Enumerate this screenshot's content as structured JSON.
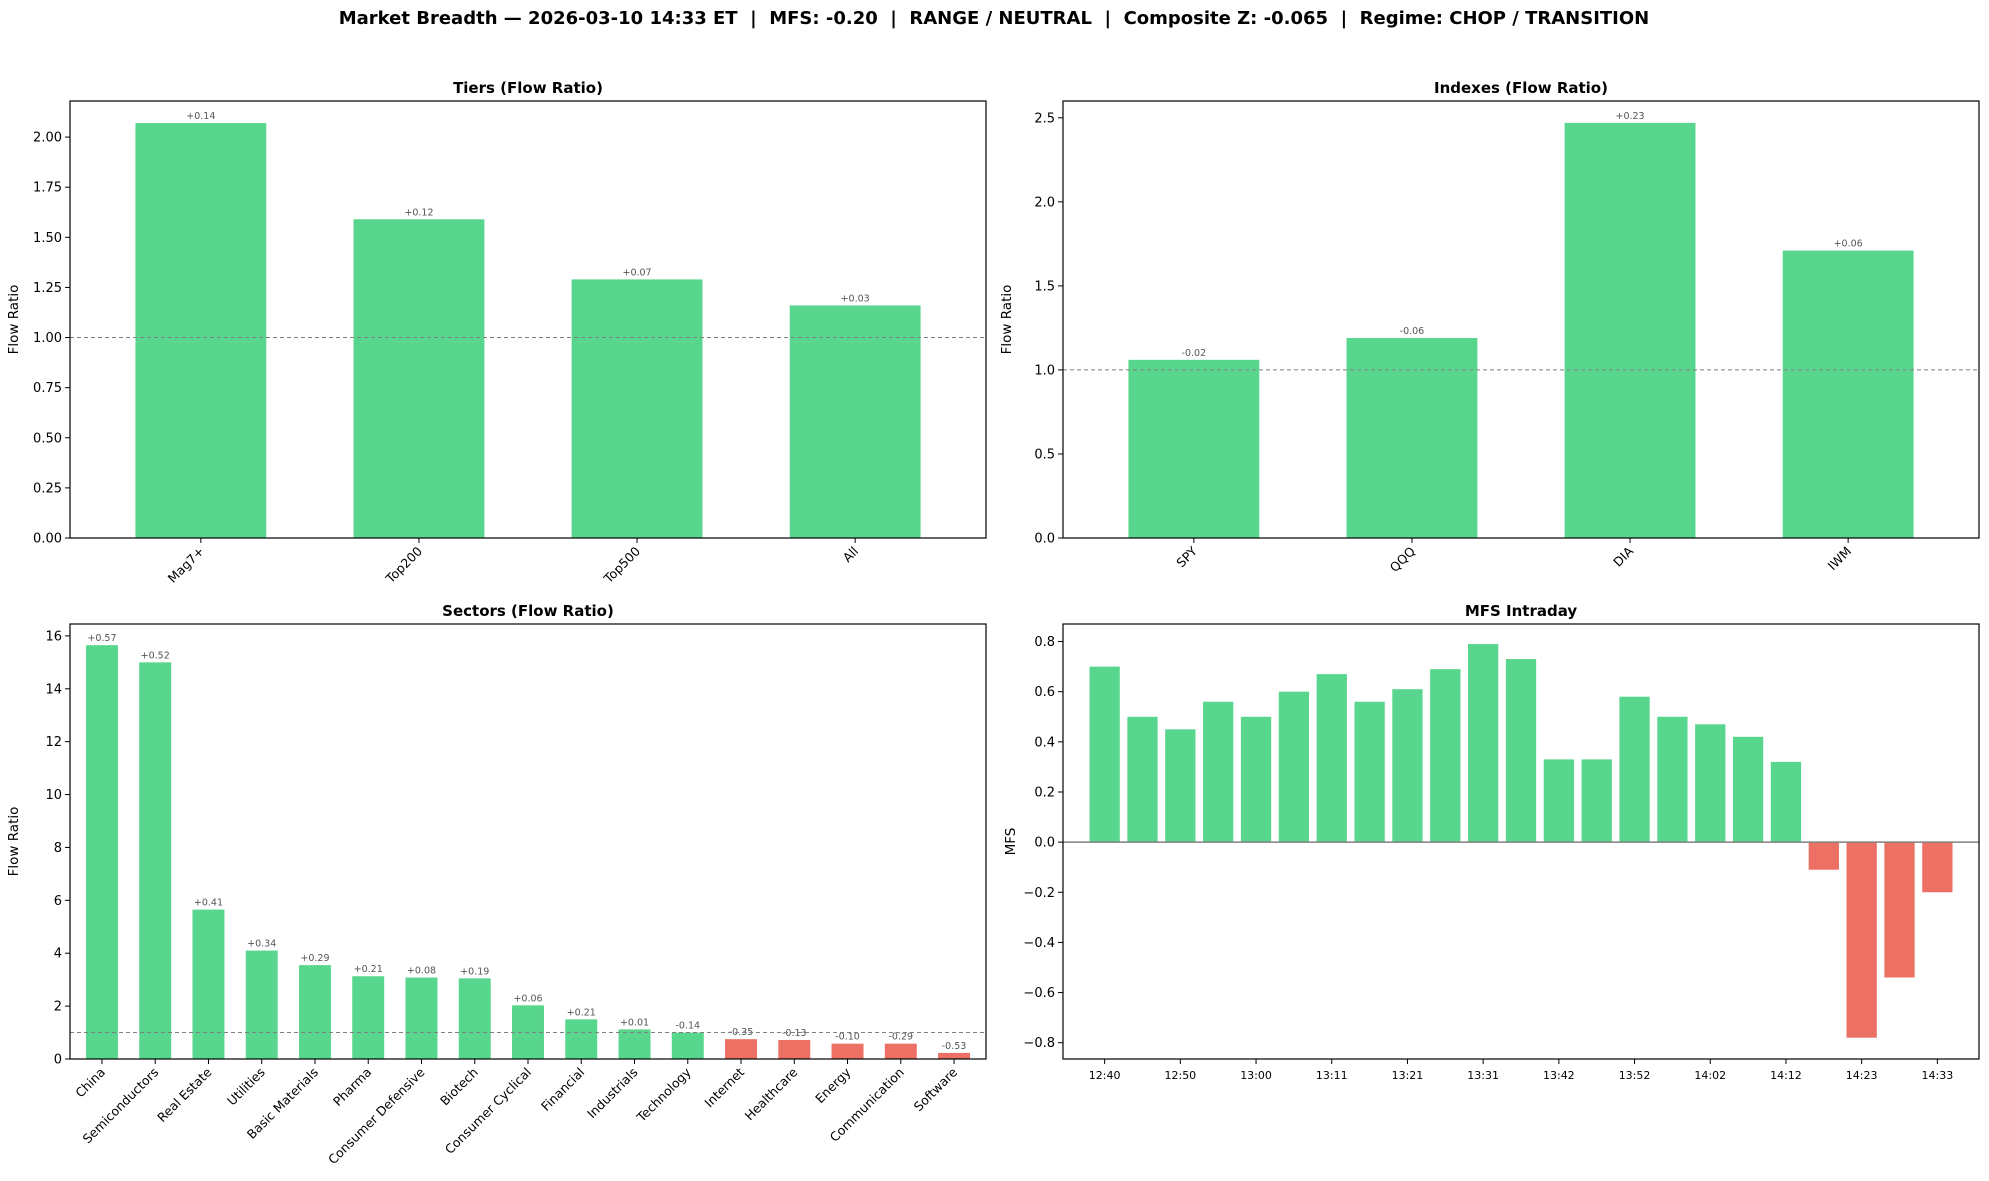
{
  "figure_title": "Market Breadth — 2026-03-10 14:33 ET  |  MFS: -0.20  |  RANGE / NEUTRAL  |  Composite Z: -0.065  |  Regime: CHOP / TRANSITION",
  "colors": {
    "positive": "#58d68d",
    "negative": "#ec7063",
    "reference_line": "#808080"
  },
  "chart_data": [
    {
      "type": "bar",
      "title": "Tiers (Flow Ratio)",
      "ylabel": "Flow Ratio",
      "categories": [
        "Mag7+",
        "Top200",
        "Top500",
        "All"
      ],
      "values": [
        2.07,
        1.59,
        1.29,
        1.16
      ],
      "data_labels": [
        "+0.14",
        "+0.12",
        "+0.07",
        "+0.03"
      ],
      "ylim": [
        0,
        2.18
      ],
      "y_ticks": [
        0,
        0.25,
        0.5,
        0.75,
        1.0,
        1.25,
        1.5,
        1.75,
        2.0
      ],
      "y_tick_labels": [
        "0.00",
        "0.25",
        "0.50",
        "0.75",
        "1.00",
        "1.25",
        "1.50",
        "1.75",
        "2.00"
      ],
      "reference_line": 1.0,
      "x_labels_rotated": true,
      "grid": false
    },
    {
      "type": "bar",
      "title": "Indexes (Flow Ratio)",
      "ylabel": "Flow Ratio",
      "categories": [
        "SPY",
        "QQQ",
        "DIA",
        "IWM"
      ],
      "values": [
        1.06,
        1.19,
        2.47,
        1.71
      ],
      "data_labels": [
        "-0.02",
        "-0.06",
        "+0.23",
        "+0.06"
      ],
      "ylim": [
        0,
        2.6
      ],
      "y_ticks": [
        0,
        0.5,
        1.0,
        1.5,
        2.0,
        2.5
      ],
      "y_tick_labels": [
        "0.0",
        "0.5",
        "1.0",
        "1.5",
        "2.0",
        "2.5"
      ],
      "reference_line": 1.0,
      "x_labels_rotated": true,
      "grid": false
    },
    {
      "type": "bar",
      "title": "Sectors (Flow Ratio)",
      "ylabel": "Flow Ratio",
      "categories": [
        "China",
        "Semiconductors",
        "Real Estate",
        "Utilities",
        "Basic Materials",
        "Pharma",
        "Consumer Defensive",
        "Biotech",
        "Consumer Cyclical",
        "Financial",
        "Industrials",
        "Technology",
        "Internet",
        "Healthcare",
        "Energy",
        "Communication",
        "Software"
      ],
      "values": [
        15.65,
        15.0,
        5.65,
        4.1,
        3.55,
        3.13,
        3.08,
        3.05,
        2.03,
        1.5,
        1.12,
        1.0,
        0.75,
        0.72,
        0.58,
        0.58,
        0.23
      ],
      "data_labels": [
        "+0.57",
        "+0.52",
        "+0.41",
        "+0.34",
        "+0.29",
        "+0.21",
        "+0.08",
        "+0.19",
        "+0.06",
        "+0.21",
        "+0.01",
        "-0.14",
        "-0.35",
        "-0.13",
        "-0.10",
        "-0.29",
        "-0.53"
      ],
      "ylim": [
        0,
        16.45
      ],
      "y_ticks": [
        0,
        2,
        4,
        6,
        8,
        10,
        12,
        14,
        16
      ],
      "y_tick_labels": [
        "0",
        "2",
        "4",
        "6",
        "8",
        "10",
        "12",
        "14",
        "16"
      ],
      "reference_line": 1.0,
      "x_labels_rotated": true,
      "grid": false
    },
    {
      "type": "bar",
      "title": "MFS Intraday",
      "ylabel": "MFS",
      "x": [
        "12:40",
        "12:45",
        "12:50",
        "12:55",
        "13:00",
        "13:05",
        "13:11",
        "13:16",
        "13:21",
        "13:26",
        "13:31",
        "13:37",
        "13:42",
        "13:47",
        "13:52",
        "13:57",
        "14:02",
        "14:07",
        "14:12",
        "14:18",
        "14:23",
        "14:28",
        "14:33"
      ],
      "values": [
        0.7,
        0.5,
        0.45,
        0.56,
        0.5,
        0.6,
        0.67,
        0.56,
        0.61,
        0.69,
        0.79,
        0.73,
        0.33,
        0.33,
        0.58,
        0.5,
        0.47,
        0.42,
        0.32,
        -0.11,
        -0.78,
        -0.54,
        -0.2
      ],
      "x_tick_labels": [
        "12:40",
        "12:50",
        "13:00",
        "13:11",
        "13:21",
        "13:31",
        "13:42",
        "13:52",
        "14:02",
        "14:12",
        "14:23",
        "14:33"
      ],
      "ylim": [
        -0.865,
        0.87
      ],
      "y_ticks": [
        -0.8,
        -0.6,
        -0.4,
        -0.2,
        0.0,
        0.2,
        0.4,
        0.6,
        0.8
      ],
      "y_tick_labels": [
        "−0.8",
        "−0.6",
        "−0.4",
        "−0.2",
        "0.0",
        "0.2",
        "0.4",
        "0.6",
        "0.8"
      ],
      "reference_line": 0.0,
      "x_labels_rotated": false,
      "grid": false
    }
  ]
}
